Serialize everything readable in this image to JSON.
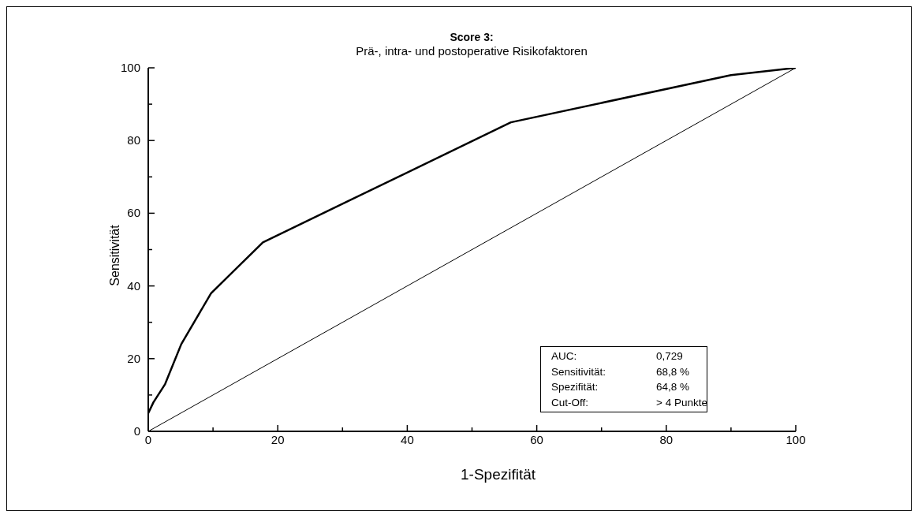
{
  "chart_data": {
    "type": "line",
    "title": "Score 3:",
    "subtitle": "Prä-, intra- und postoperative Risikofaktoren",
    "xlabel": "1-Spezifität",
    "ylabel": "Sensitivität",
    "annotations": [
      "AUC:",
      "0,729",
      "Sensitivität:",
      "68,8 %",
      "Spezifität:",
      "64,8 %",
      "Cut-Off:",
      "> 4 Punkte"
    ],
    "series": [
      {
        "color": "#000000",
        "x": [
          0,
          0.8,
          2.6,
          5.1,
          9.7,
          17.7,
          56,
          90,
          100
        ],
        "values": [
          5,
          8,
          13,
          24,
          38,
          52,
          85,
          98,
          100
        ]
      },
      {
        "color": "#000000",
        "x": [
          0,
          100
        ],
        "values": [
          0,
          100
        ]
      }
    ],
    "xlim": [
      0,
      100
    ],
    "ylim": [
      0,
      100
    ],
    "xticks": [
      0,
      {
        "value": 10,
        "label": null
      },
      20,
      {
        "value": 30,
        "label": null
      },
      40,
      {
        "value": 50,
        "label": null
      },
      60,
      {
        "value": 70,
        "label": null
      },
      80,
      {
        "value": 90,
        "label": null
      },
      100
    ],
    "yticks": [
      0,
      {
        "value": 10,
        "label": null
      },
      20,
      {
        "value": 30,
        "label": null
      },
      40,
      {
        "value": 50,
        "label": null
      },
      60,
      {
        "value": 70,
        "label": null
      },
      80,
      {
        "value": 90,
        "label": null
      },
      100
    ],
    "marker": "none",
    "line_style": "solid"
  }
}
